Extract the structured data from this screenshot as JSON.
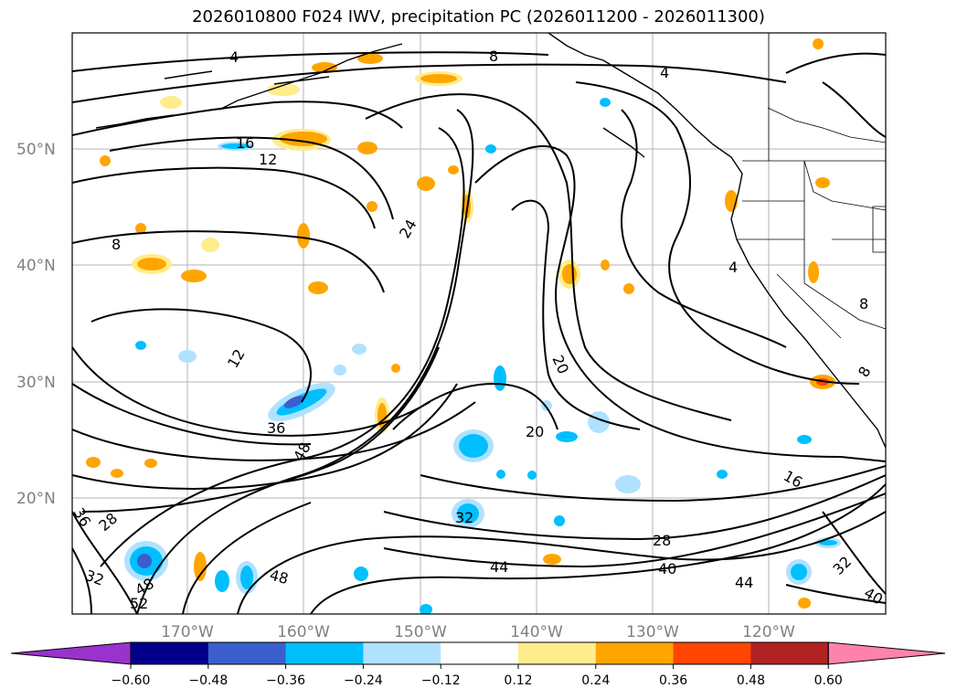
{
  "title": "2026010800 F024 IWV, precipitation PC (2026011200 - 2026011300)",
  "lat_labels": [
    "50°N",
    "40°N",
    "30°N",
    "20°N"
  ],
  "lon_labels": [
    "170°W",
    "160°W",
    "150°W",
    "140°W",
    "130°W",
    "120°W"
  ],
  "contour_labels": [
    "4",
    "8",
    "4",
    "16",
    "12",
    "8",
    "24",
    "4",
    "8",
    "12",
    "20",
    "20",
    "36",
    "48",
    "16",
    "8",
    "28",
    "36",
    "32",
    "32",
    "28",
    "48",
    "44",
    "40",
    "48",
    "52",
    "44",
    "32",
    "40"
  ],
  "colorbar": {
    "ticks": [
      "−0.60",
      "−0.48",
      "−0.36",
      "−0.24",
      "−0.12",
      "0.12",
      "0.24",
      "0.36",
      "0.48",
      "0.60"
    ],
    "colors": [
      "#9a32cd",
      "#00008b",
      "#3a5fcd",
      "#00bfff",
      "#b0e2ff",
      "#ffffff",
      "#ffec8b",
      "#ffa500",
      "#ff4500",
      "#b22222",
      "#ff82ab"
    ]
  }
}
